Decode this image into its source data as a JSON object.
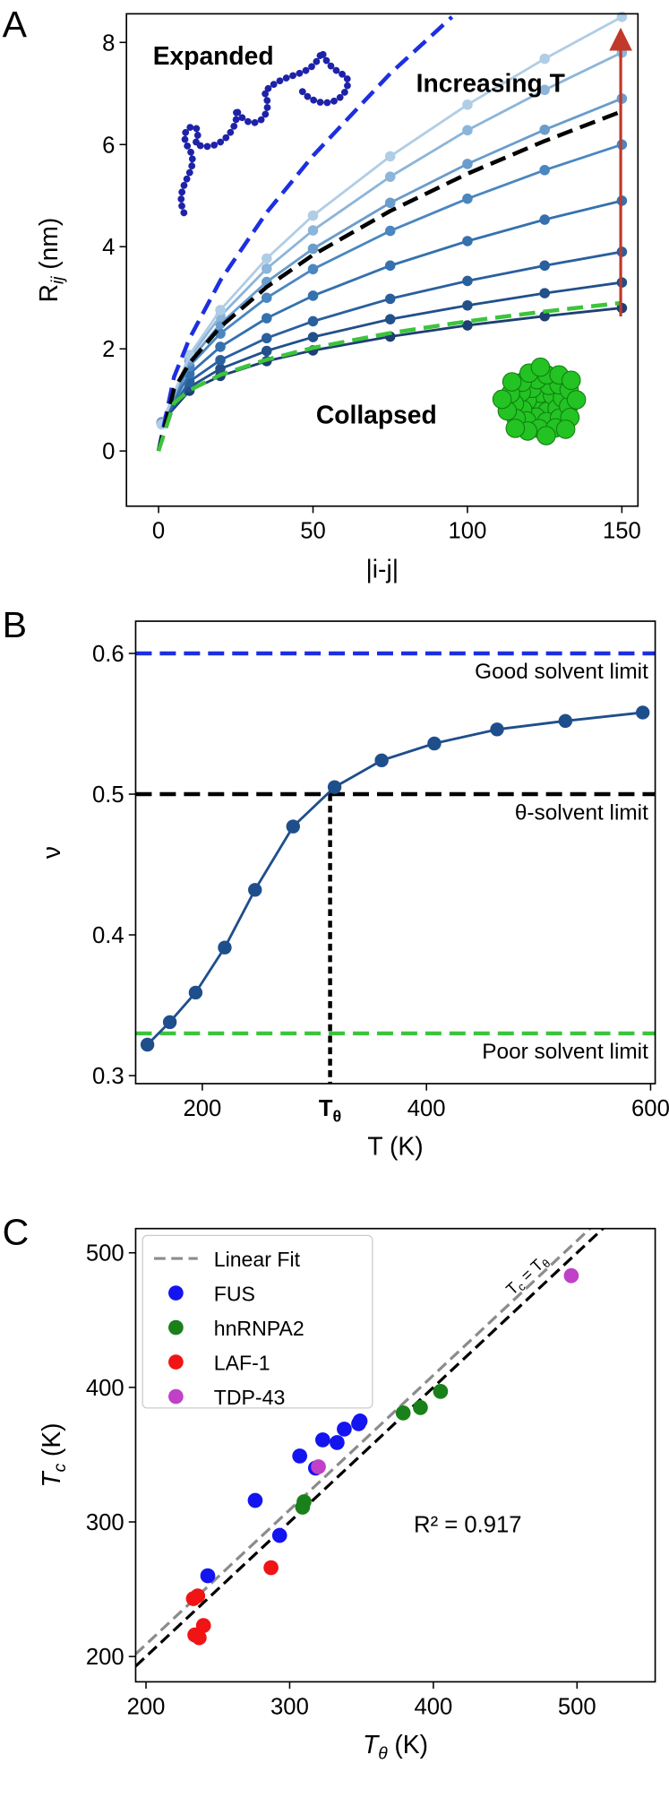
{
  "chart_data": [
    {
      "type": "line",
      "panel_label": "A",
      "xlabel": "|i-j|",
      "ylabel": "R",
      "ylabel_sub": "ij",
      "ylabel_unit": "(nm)",
      "xlim": [
        -10.4,
        155.2
      ],
      "ylim": [
        -1.08,
        8.56
      ],
      "xticks": [
        0,
        50,
        100,
        150
      ],
      "yticks": [
        0,
        2,
        4,
        6,
        8
      ],
      "annotations": [
        "Expanded",
        "Increasing T",
        "Collapsed"
      ],
      "series": [
        {
          "style": "dots+line",
          "color": "#1d3f73",
          "x": [
            1,
            10,
            20,
            35,
            50,
            75,
            100,
            125,
            150
          ],
          "values": [
            0.56,
            1.18,
            1.47,
            1.76,
            1.97,
            2.24,
            2.46,
            2.64,
            2.8
          ]
        },
        {
          "style": "dots+line",
          "color": "#21508a",
          "x": [
            1,
            10,
            20,
            35,
            50,
            75,
            100,
            125,
            150
          ],
          "values": [
            0.55,
            1.25,
            1.61,
            1.96,
            2.23,
            2.58,
            2.85,
            3.09,
            3.3
          ]
        },
        {
          "style": "dots+line",
          "color": "#2a5f9e",
          "x": [
            1,
            10,
            20,
            35,
            50,
            75,
            100,
            125,
            150
          ],
          "values": [
            0.55,
            1.36,
            1.78,
            2.21,
            2.54,
            2.98,
            3.33,
            3.63,
            3.9
          ]
        },
        {
          "style": "dots+line",
          "color": "#3471ae",
          "x": [
            1,
            10,
            20,
            35,
            50,
            75,
            100,
            125,
            150
          ],
          "values": [
            0.55,
            1.51,
            2.04,
            2.6,
            3.04,
            3.63,
            4.11,
            4.53,
            4.9
          ]
        },
        {
          "style": "dots+line",
          "color": "#4a86bf",
          "x": [
            1,
            10,
            20,
            35,
            50,
            75,
            100,
            125,
            150
          ],
          "values": [
            0.55,
            1.66,
            2.3,
            3.0,
            3.56,
            4.31,
            4.94,
            5.5,
            6.0
          ]
        },
        {
          "style": "dots+line",
          "color": "#6a9ccc",
          "x": [
            1,
            10,
            20,
            35,
            50,
            75,
            100,
            125,
            150
          ],
          "values": [
            0.55,
            1.76,
            2.49,
            3.31,
            3.96,
            4.86,
            5.62,
            6.29,
            6.9
          ]
        },
        {
          "style": "dots+line",
          "color": "#8cb5da",
          "x": [
            1,
            10,
            20,
            35,
            50,
            75,
            100,
            125,
            150
          ],
          "values": [
            0.53,
            1.83,
            2.64,
            3.57,
            4.32,
            5.37,
            6.28,
            7.07,
            7.8
          ]
        },
        {
          "style": "dots+line",
          "color": "#b0cde6",
          "x": [
            1,
            10,
            20,
            35,
            50,
            75,
            100,
            125,
            150
          ],
          "values": [
            0.52,
            1.88,
            2.76,
            3.77,
            4.61,
            5.77,
            6.78,
            7.68,
            8.5
          ]
        },
        {
          "style": "dashed",
          "color": "#1c2fe0",
          "x": [
            0,
            5,
            10,
            20,
            35,
            50,
            75,
            95
          ],
          "values": [
            0,
            1.45,
            2.2,
            3.34,
            4.67,
            5.78,
            7.39,
            8.5
          ]
        },
        {
          "style": "dashed",
          "color": "#000000",
          "x": [
            0,
            5,
            10,
            20,
            35,
            50,
            75,
            100,
            125,
            150
          ],
          "values": [
            0,
            1.21,
            1.72,
            2.43,
            3.21,
            3.84,
            4.7,
            5.43,
            6.07,
            6.65
          ]
        },
        {
          "style": "dashed",
          "color": "#3cc43c",
          "x": [
            0,
            5,
            10,
            20,
            35,
            50,
            75,
            100,
            125,
            150
          ],
          "values": [
            0,
            0.94,
            1.19,
            1.49,
            1.79,
            2.02,
            2.31,
            2.54,
            2.73,
            2.9
          ]
        }
      ]
    },
    {
      "type": "line",
      "panel_label": "B",
      "xlabel": "T (K)",
      "ylabel": "ν",
      "xlim": [
        140.5,
        604.1
      ],
      "ylim": [
        0.2943,
        0.6229
      ],
      "xticks": [
        200,
        400,
        600
      ],
      "yticks": [
        0.3,
        0.4,
        0.5,
        0.6
      ],
      "hlines": [
        {
          "value": 0.6,
          "color": "#1c2fe0",
          "label": "Good solvent limit",
          "label_color": "#4a6fd8"
        },
        {
          "value": 0.5,
          "color": "#000000",
          "label": "θ-solvent limit",
          "label_color": "#000000"
        },
        {
          "value": 0.33,
          "color": "#3cc43c",
          "label": "Poor solvent limit",
          "label_color": "#4caf30"
        }
      ],
      "theta": {
        "value": 314,
        "label": "T",
        "label_sub": "θ"
      },
      "series": [
        {
          "style": "dots+line",
          "color": "#1f4e8c",
          "x": [
            151,
            171,
            194,
            220,
            247,
            281,
            318,
            360,
            407,
            463,
            524,
            593
          ],
          "values": [
            0.322,
            0.338,
            0.359,
            0.391,
            0.432,
            0.477,
            0.505,
            0.524,
            0.536,
            0.546,
            0.552,
            0.558
          ]
        }
      ]
    },
    {
      "type": "scatter",
      "panel_label": "C",
      "xlabel": "T",
      "xlabel_sub": "θ",
      "xlabel_unit": "(K)",
      "ylabel": "T",
      "ylabel_sub": "c",
      "ylabel_unit": "(K)",
      "xlim": [
        192.8,
        554.4
      ],
      "ylim": [
        181.2,
        518
      ],
      "xticks": [
        200,
        300,
        400,
        500
      ],
      "yticks": [
        200,
        300,
        400,
        500
      ],
      "legend": "upper left",
      "fit": {
        "name": "Linear Fit",
        "color": "#8c8c8c",
        "slope": 1.0,
        "intercept": 9
      },
      "identity": {
        "label": "T",
        "label_sub": "c",
        "label_mid": "= T",
        "label_sub2": "θ"
      },
      "r2_label": "R² = 0.917",
      "series": [
        {
          "name": "FUS",
          "color": "#1414f0",
          "x": [
            243,
            293,
            276,
            307,
            323,
            333,
            338,
            348,
            349,
            318
          ],
          "values": [
            260,
            290,
            316,
            349,
            361,
            359,
            369,
            373,
            375,
            340
          ]
        },
        {
          "name": "hnRNPA2",
          "color": "#1a801a",
          "x": [
            309,
            310,
            379,
            391,
            405
          ],
          "values": [
            311,
            315,
            381,
            385,
            397
          ]
        },
        {
          "name": "LAF-1",
          "color": "#f01414",
          "x": [
            233,
            236,
            234,
            237,
            240,
            287
          ],
          "values": [
            243,
            245,
            216,
            214,
            223,
            266
          ]
        },
        {
          "name": "TDP-43",
          "color": "#c040c8",
          "x": [
            320,
            496
          ],
          "values": [
            341,
            483
          ]
        }
      ]
    }
  ]
}
